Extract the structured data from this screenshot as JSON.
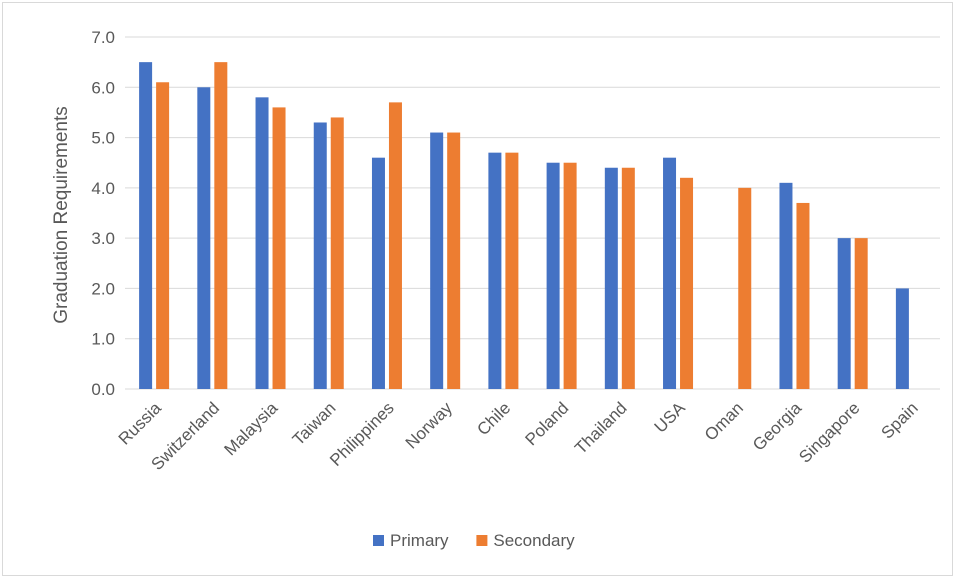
{
  "chart_data": {
    "type": "bar",
    "title": "",
    "xlabel": "",
    "ylabel": "Graduation Requirements",
    "ylim": [
      0,
      7
    ],
    "yticks": [
      "0.0",
      "1.0",
      "2.0",
      "3.0",
      "4.0",
      "5.0",
      "6.0",
      "7.0"
    ],
    "grid": true,
    "legend_position": "bottom",
    "categories": [
      "Russia",
      "Switzerland",
      "Malaysia",
      "Taiwan",
      "Philippines",
      "Norway",
      "Chile",
      "Poland",
      "Thailand",
      "USA",
      "Oman",
      "Georgia",
      "Singapore",
      "Spain"
    ],
    "series": [
      {
        "name": "Primary",
        "color": "#4472C4",
        "values": [
          6.5,
          6.0,
          5.8,
          5.3,
          4.6,
          5.1,
          4.7,
          4.5,
          4.4,
          4.6,
          null,
          4.1,
          3.0,
          2.0
        ]
      },
      {
        "name": "Secondary",
        "color": "#ED7D31",
        "values": [
          6.1,
          6.5,
          5.6,
          5.4,
          5.7,
          5.1,
          4.7,
          4.5,
          4.4,
          4.2,
          4.0,
          3.7,
          3.0,
          null
        ]
      }
    ]
  }
}
